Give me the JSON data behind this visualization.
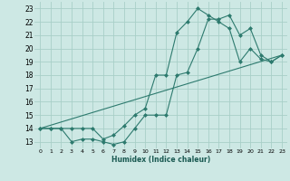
{
  "xlabel": "Humidex (Indice chaleur)",
  "background_color": "#cde8e4",
  "grid_color": "#a8cfc8",
  "line_color": "#2d7a6e",
  "xlim": [
    -0.5,
    23.5
  ],
  "ylim": [
    12.5,
    23.5
  ],
  "xticks": [
    0,
    1,
    2,
    3,
    4,
    5,
    6,
    7,
    8,
    9,
    10,
    11,
    12,
    13,
    14,
    15,
    16,
    17,
    18,
    19,
    20,
    21,
    22,
    23
  ],
  "yticks": [
    13,
    14,
    15,
    16,
    17,
    18,
    19,
    20,
    21,
    22,
    23
  ],
  "series1_x": [
    0,
    1,
    2,
    3,
    4,
    5,
    6,
    7,
    8,
    9,
    10,
    11,
    12,
    13,
    14,
    15,
    16,
    17,
    18,
    19,
    20,
    21,
    22,
    23
  ],
  "series1_y": [
    14,
    14,
    14,
    13,
    13.2,
    13.2,
    13,
    12.8,
    13,
    14,
    15,
    15,
    15,
    18,
    18.2,
    20,
    22.2,
    22.2,
    22.5,
    21,
    21.5,
    19.5,
    19,
    19.5
  ],
  "series2_x": [
    0,
    1,
    2,
    3,
    4,
    5,
    6,
    7,
    8,
    9,
    10,
    11,
    12,
    13,
    14,
    15,
    16,
    17,
    18,
    19,
    20,
    21,
    22,
    23
  ],
  "series2_y": [
    14,
    14,
    14,
    14,
    14,
    14,
    13.2,
    13.5,
    14.2,
    15,
    15.5,
    18,
    18,
    21.2,
    22,
    23,
    22.5,
    22,
    21.5,
    19,
    20,
    19.2,
    19,
    19.5
  ],
  "series3_x": [
    0,
    23
  ],
  "series3_y": [
    14,
    19.5
  ]
}
